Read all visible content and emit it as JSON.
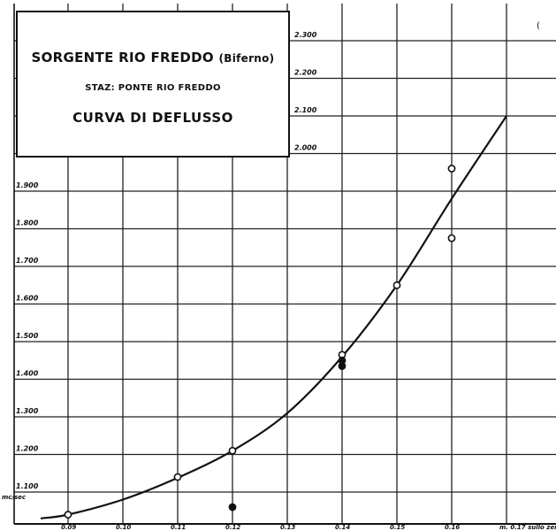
{
  "title_box": {
    "line1": "SORGENTE RIO FREDDO",
    "line1_paren": "(Biferno)",
    "line2": "STAZ: PONTE RIO FREDDO",
    "line3": "CURVA DI DEFLUSSO"
  },
  "corner_mark": "(",
  "chart_data": {
    "type": "scatter",
    "title": "CURVA DI DEFLUSSO",
    "xlabel": "m. 0.17 sullo zero",
    "ylabel": "mc/sec",
    "x_ticks": [
      "0.09",
      "0.10",
      "0.11",
      "0.12",
      "0.13",
      "0.14",
      "0.15",
      "0.16",
      "m. 0.17 sullo zero"
    ],
    "y_ticks_left": [
      "1.100",
      "1.200",
      "1.300",
      "1.400",
      "1.500",
      "1.600",
      "1.700",
      "1.800",
      "1.900"
    ],
    "y_ticks_right": [
      "2.000",
      "2.100",
      "2.200",
      "2.300"
    ],
    "y_unit_label": "mc/sec",
    "xlim": [
      0.09,
      0.18
    ],
    "ylim": [
      1.04,
      2.4
    ],
    "grid": true,
    "series": [
      {
        "type": "scatter",
        "marker": "open-circle",
        "points": [
          [
            0.09,
            1.04
          ],
          [
            0.11,
            1.14
          ],
          [
            0.12,
            1.21
          ],
          [
            0.14,
            1.465
          ],
          [
            0.15,
            1.65
          ],
          [
            0.16,
            1.775
          ],
          [
            0.16,
            1.96
          ]
        ]
      },
      {
        "type": "scatter",
        "marker": "filled-circle",
        "points": [
          [
            0.12,
            1.06
          ],
          [
            0.14,
            1.45
          ],
          [
            0.14,
            1.435
          ]
        ]
      },
      {
        "type": "line",
        "points": [
          [
            0.085,
            1.03
          ],
          [
            0.09,
            1.04
          ],
          [
            0.1,
            1.08
          ],
          [
            0.11,
            1.138
          ],
          [
            0.12,
            1.21
          ],
          [
            0.13,
            1.31
          ],
          [
            0.14,
            1.46
          ],
          [
            0.15,
            1.65
          ],
          [
            0.16,
            1.88
          ],
          [
            0.17,
            2.1
          ]
        ]
      }
    ]
  }
}
